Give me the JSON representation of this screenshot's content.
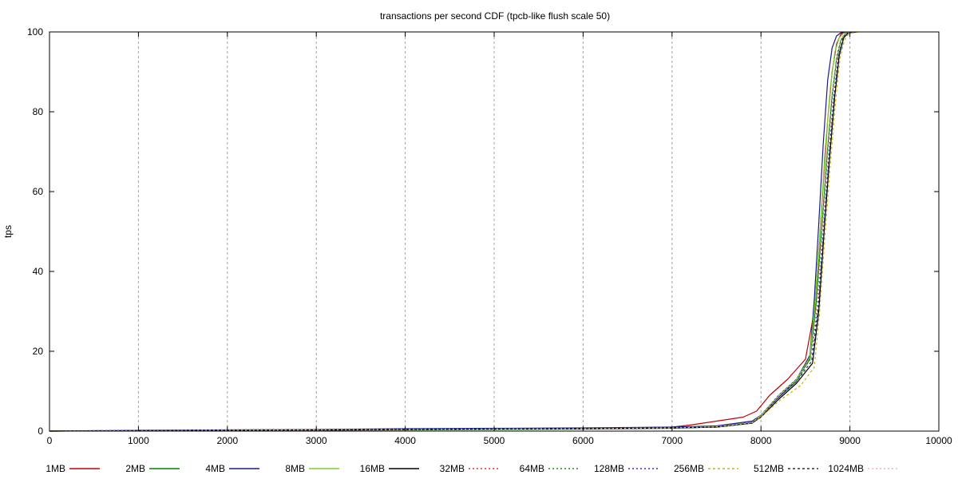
{
  "chart_data": {
    "type": "line",
    "title": "transactions per second CDF (tpcb-like flush scale 50)",
    "xlabel": "",
    "ylabel": "tps",
    "xlim": [
      0,
      10000
    ],
    "ylim": [
      0,
      100
    ],
    "x_ticks": [
      0,
      1000,
      2000,
      3000,
      4000,
      5000,
      6000,
      7000,
      8000,
      9000,
      10000
    ],
    "y_ticks": [
      0,
      20,
      40,
      60,
      80,
      100
    ],
    "grid": "vertical dashed",
    "legend_position": "bottom",
    "series": [
      {
        "name": "1MB",
        "color": "#c00000",
        "dash": "solid",
        "x": [
          0,
          1000,
          2000,
          3000,
          4000,
          5000,
          6000,
          7000,
          7200,
          7500,
          7800,
          7950,
          8100,
          8300,
          8500,
          8600,
          8650,
          8700,
          8750,
          8800,
          8850,
          8900,
          9000
        ],
        "y": [
          0,
          0.1,
          0.2,
          0.3,
          0.4,
          0.5,
          0.6,
          1.0,
          1.5,
          2.5,
          3.5,
          5.0,
          9.0,
          13.0,
          18.0,
          30.0,
          45.0,
          62.0,
          78.0,
          90.0,
          97.0,
          99.5,
          100
        ]
      },
      {
        "name": "2MB",
        "color": "#008000",
        "dash": "solid",
        "x": [
          0,
          1000,
          2000,
          3000,
          4000,
          5000,
          6000,
          7000,
          7500,
          7900,
          8000,
          8200,
          8400,
          8550,
          8620,
          8680,
          8740,
          8800,
          8850,
          8900,
          8950,
          9050
        ],
        "y": [
          0,
          0.1,
          0.1,
          0.2,
          0.3,
          0.4,
          0.5,
          0.7,
          1.0,
          2.0,
          4.0,
          8.5,
          12.5,
          18.0,
          32.0,
          50.0,
          68.0,
          84.0,
          93.0,
          98.0,
          99.5,
          100
        ]
      },
      {
        "name": "4MB",
        "color": "#1a1a8c",
        "dash": "solid",
        "x": [
          0,
          1000,
          2000,
          3000,
          4000,
          5000,
          6000,
          7000,
          7500,
          7900,
          8000,
          8200,
          8400,
          8550,
          8600,
          8650,
          8700,
          8750,
          8800,
          8850,
          8900,
          9000
        ],
        "y": [
          0,
          0.2,
          0.3,
          0.4,
          0.6,
          0.7,
          0.8,
          1.0,
          1.3,
          2.5,
          4.0,
          8.5,
          13.0,
          19.0,
          33.0,
          52.0,
          72.0,
          88.0,
          96.0,
          99.0,
          99.8,
          100
        ]
      },
      {
        "name": "8MB",
        "color": "#7ccf2e",
        "dash": "solid",
        "x": [
          0,
          1000,
          2000,
          3000,
          4000,
          5000,
          6000,
          7000,
          7500,
          7900,
          8000,
          8200,
          8400,
          8550,
          8610,
          8670,
          8720,
          8780,
          8830,
          8880,
          8930,
          9030
        ],
        "y": [
          0,
          0.1,
          0.2,
          0.3,
          0.4,
          0.5,
          0.6,
          0.8,
          1.1,
          2.2,
          4.0,
          9.0,
          13.0,
          18.5,
          33.0,
          52.0,
          70.0,
          86.0,
          95.0,
          98.5,
          99.7,
          100
        ]
      },
      {
        "name": "16MB",
        "color": "#000000",
        "dash": "solid",
        "x": [
          0,
          1000,
          2000,
          3000,
          4000,
          5000,
          6000,
          7000,
          7500,
          7900,
          8000,
          8200,
          8400,
          8580,
          8650,
          8710,
          8770,
          8830,
          8880,
          8930,
          8980,
          9080
        ],
        "y": [
          0,
          0.1,
          0.2,
          0.3,
          0.4,
          0.5,
          0.6,
          0.8,
          1.0,
          2.0,
          3.5,
          8.0,
          12.0,
          17.0,
          30.0,
          50.0,
          68.0,
          84.0,
          94.0,
          98.5,
          99.7,
          100
        ]
      },
      {
        "name": "32MB",
        "color": "#e0303a",
        "dash": "2,3",
        "x": [
          0,
          1000,
          2000,
          3000,
          4000,
          5000,
          6000,
          7000,
          7500,
          7900,
          8000,
          8200,
          8400,
          8560,
          8630,
          8690,
          8750,
          8810,
          8860,
          8910,
          8960,
          9060
        ],
        "y": [
          0,
          0.1,
          0.2,
          0.3,
          0.4,
          0.5,
          0.6,
          0.8,
          1.1,
          2.2,
          4.0,
          9.0,
          13.0,
          18.5,
          32.0,
          51.0,
          69.0,
          85.0,
          94.5,
          98.5,
          99.7,
          100
        ]
      },
      {
        "name": "64MB",
        "color": "#1e8c1e",
        "dash": "2,3",
        "x": [
          0,
          1000,
          2000,
          3000,
          4000,
          5000,
          6000,
          7000,
          7500,
          7900,
          8000,
          8200,
          8400,
          8560,
          8625,
          8685,
          8745,
          8805,
          8855,
          8905,
          8955,
          9055
        ],
        "y": [
          0,
          0.1,
          0.2,
          0.3,
          0.4,
          0.5,
          0.6,
          0.8,
          1.1,
          2.2,
          4.0,
          9.0,
          13.0,
          18.5,
          32.0,
          51.0,
          69.0,
          85.0,
          94.5,
          98.5,
          99.7,
          100
        ]
      },
      {
        "name": "128MB",
        "color": "#3030c8",
        "dash": "2,3",
        "x": [
          0,
          1000,
          2000,
          3000,
          4000,
          5000,
          6000,
          7000,
          7500,
          7900,
          8000,
          8200,
          8400,
          8560,
          8640,
          8700,
          8760,
          8820,
          8870,
          8920,
          8970,
          9070
        ],
        "y": [
          0,
          0.2,
          0.3,
          0.4,
          0.5,
          0.6,
          0.7,
          0.9,
          1.2,
          2.3,
          4.0,
          9.0,
          13.0,
          18.0,
          31.0,
          50.0,
          68.0,
          84.0,
          94.0,
          98.5,
          99.7,
          100
        ]
      },
      {
        "name": "256MB",
        "color": "#c8b400",
        "dash": "3,3",
        "x": [
          0,
          1000,
          2000,
          3000,
          4000,
          5000,
          6000,
          7000,
          7500,
          7900,
          8000,
          8200,
          8450,
          8600,
          8660,
          8720,
          8780,
          8840,
          8890,
          8940,
          8990,
          9090
        ],
        "y": [
          0,
          0.1,
          0.2,
          0.3,
          0.4,
          0.5,
          0.6,
          0.8,
          1.0,
          2.0,
          3.5,
          7.5,
          11.5,
          16.0,
          30.0,
          49.0,
          67.0,
          83.0,
          93.5,
          98.0,
          99.6,
          100
        ]
      },
      {
        "name": "512MB",
        "color": "#203050",
        "dash": "3,3",
        "x": [
          0,
          1000,
          2000,
          3000,
          4000,
          5000,
          6000,
          7000,
          7500,
          7900,
          8000,
          8200,
          8400,
          8570,
          8645,
          8705,
          8765,
          8825,
          8875,
          8925,
          8975,
          9075
        ],
        "y": [
          0,
          0.1,
          0.2,
          0.3,
          0.4,
          0.5,
          0.6,
          0.8,
          1.0,
          2.0,
          3.8,
          8.5,
          12.5,
          17.5,
          31.0,
          50.0,
          68.0,
          84.0,
          94.0,
          98.5,
          99.7,
          100
        ]
      },
      {
        "name": "1024MB",
        "color": "#f0b8a8",
        "dash": "2,3",
        "x": [
          0,
          1000,
          2000,
          3000,
          4000,
          5000,
          6000,
          7000,
          7500,
          7900,
          8000,
          8200,
          8400,
          8560,
          8630,
          8690,
          8750,
          8810,
          8860,
          8910,
          8960,
          9060
        ],
        "y": [
          0,
          0.1,
          0.2,
          0.3,
          0.4,
          0.5,
          0.6,
          0.8,
          1.1,
          2.1,
          3.9,
          8.8,
          12.8,
          18.0,
          32.0,
          51.0,
          69.0,
          85.0,
          94.5,
          98.5,
          99.7,
          100
        ]
      }
    ]
  }
}
